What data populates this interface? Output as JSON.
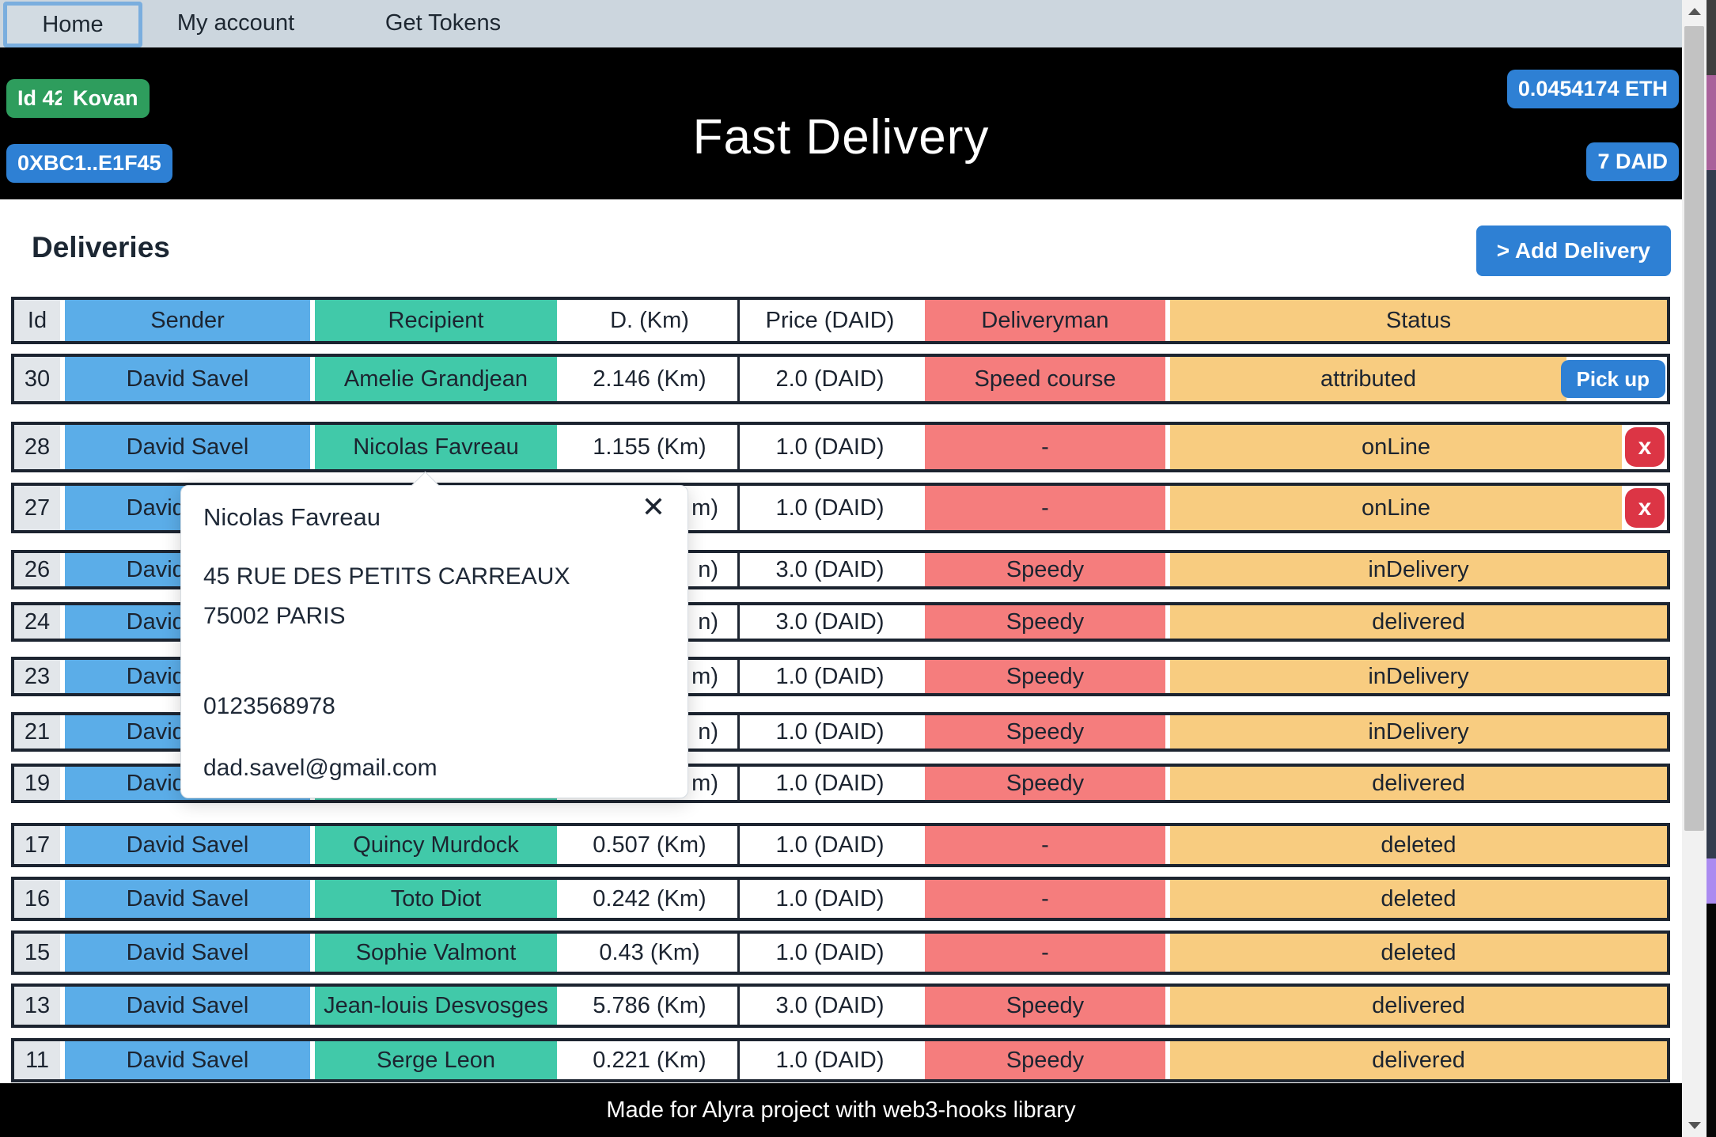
{
  "nav": {
    "tabs": [
      {
        "label": "Home",
        "active": true
      },
      {
        "label": "My account",
        "active": false
      },
      {
        "label": "Get Tokens",
        "active": false
      }
    ]
  },
  "header": {
    "title": "Fast Delivery",
    "badges_left": [
      {
        "label": "Id 42",
        "color": "#2e9d5d"
      },
      {
        "label": "Kovan",
        "color": "#2e9d5d"
      },
      {
        "label": "0XBC1..E1F45",
        "color": "#2e80d4"
      }
    ],
    "badges_right": [
      {
        "label": "0.0454174 ETH",
        "color": "#2e80d4"
      },
      {
        "label": "7 DAID",
        "color": "#2e80d4"
      }
    ]
  },
  "main": {
    "heading": "Deliveries",
    "add_button_label": "> Add Delivery"
  },
  "table": {
    "columns": [
      "Id",
      "Sender",
      "Recipient",
      "D. (Km)",
      "Price (DAID)",
      "Deliveryman",
      "Status"
    ],
    "rows": [
      {
        "id": "30",
        "sender": "David Savel",
        "recipient": "Amelie Grandjean",
        "distance": "2.146 (Km)",
        "price": "2.0 (DAID)",
        "deliveryman": "Speed course",
        "status": "attributed",
        "action": "pickup",
        "action_label": "Pick up"
      },
      {
        "id": "28",
        "sender": "David Savel",
        "recipient": "Nicolas Favreau",
        "distance": "1.155 (Km)",
        "price": "1.0 (DAID)",
        "deliveryman": "-",
        "status": "onLine",
        "action": "x",
        "action_label": "x"
      },
      {
        "id": "27",
        "sender": "David Savel",
        "recipient": "",
        "distance": "m)",
        "price": "1.0 (DAID)",
        "deliveryman": "-",
        "status": "onLine",
        "action": "x",
        "action_label": "x",
        "covered_by_popup": true
      },
      {
        "id": "26",
        "sender": "David Savel",
        "recipient": "",
        "distance": "n)",
        "price": "3.0 (DAID)",
        "deliveryman": "Speedy",
        "status": "inDelivery",
        "action": "none",
        "covered_by_popup": true
      },
      {
        "id": "24",
        "sender": "David Savel",
        "recipient": "",
        "distance": "n)",
        "price": "3.0 (DAID)",
        "deliveryman": "Speedy",
        "status": "delivered",
        "action": "none",
        "covered_by_popup": true
      },
      {
        "id": "23",
        "sender": "David Savel",
        "recipient": "",
        "distance": "m)",
        "price": "1.0 (DAID)",
        "deliveryman": "Speedy",
        "status": "inDelivery",
        "action": "none",
        "covered_by_popup": true
      },
      {
        "id": "21",
        "sender": "David Savel",
        "recipient": "",
        "distance": "n)",
        "price": "1.0 (DAID)",
        "deliveryman": "Speedy",
        "status": "inDelivery",
        "action": "none",
        "covered_by_popup": true
      },
      {
        "id": "19",
        "sender": "David Savel",
        "recipient": "",
        "distance": "m)",
        "price": "1.0 (DAID)",
        "deliveryman": "Speedy",
        "status": "delivered",
        "action": "none",
        "covered_by_popup": true
      },
      {
        "id": "17",
        "sender": "David Savel",
        "recipient": "Quincy Murdock",
        "distance": "0.507 (Km)",
        "price": "1.0 (DAID)",
        "deliveryman": "-",
        "status": "deleted",
        "action": "none"
      },
      {
        "id": "16",
        "sender": "David Savel",
        "recipient": "Toto Diot",
        "distance": "0.242 (Km)",
        "price": "1.0 (DAID)",
        "deliveryman": "-",
        "status": "deleted",
        "action": "none"
      },
      {
        "id": "15",
        "sender": "David Savel",
        "recipient": "Sophie Valmont",
        "distance": "0.43 (Km)",
        "price": "1.0 (DAID)",
        "deliveryman": "-",
        "status": "deleted",
        "action": "none"
      },
      {
        "id": "13",
        "sender": "David Savel",
        "recipient": "Jean-louis Desvosges",
        "distance": "5.786 (Km)",
        "price": "3.0 (DAID)",
        "deliveryman": "Speedy",
        "status": "delivered",
        "action": "none"
      },
      {
        "id": "11",
        "sender": "David Savel",
        "recipient": "Serge Leon",
        "distance": "0.221 (Km)",
        "price": "1.0 (DAID)",
        "deliveryman": "Speedy",
        "status": "delivered",
        "action": "none"
      }
    ]
  },
  "popup": {
    "title": "Nicolas Favreau",
    "close_label": "✕",
    "address_line1": "45 RUE DES PETITS CARREAUX",
    "address_line2": "75002 PARIS",
    "phone": "0123568978",
    "email": "dad.savel@gmail.com"
  },
  "footer": {
    "text": "Made for Alyra project with web3-hooks library"
  },
  "colors": {
    "nav_bg": "#ccd6de",
    "accent_blue": "#2e80d4",
    "badge_green": "#2e9d5d",
    "sender_blue": "#5bade8",
    "recipient_teal": "#41c9a9",
    "deliveryman_red": "#f57d7d",
    "status_orange": "#f8cc80",
    "danger_red": "#dc3545",
    "row_border": "#1c2430"
  }
}
